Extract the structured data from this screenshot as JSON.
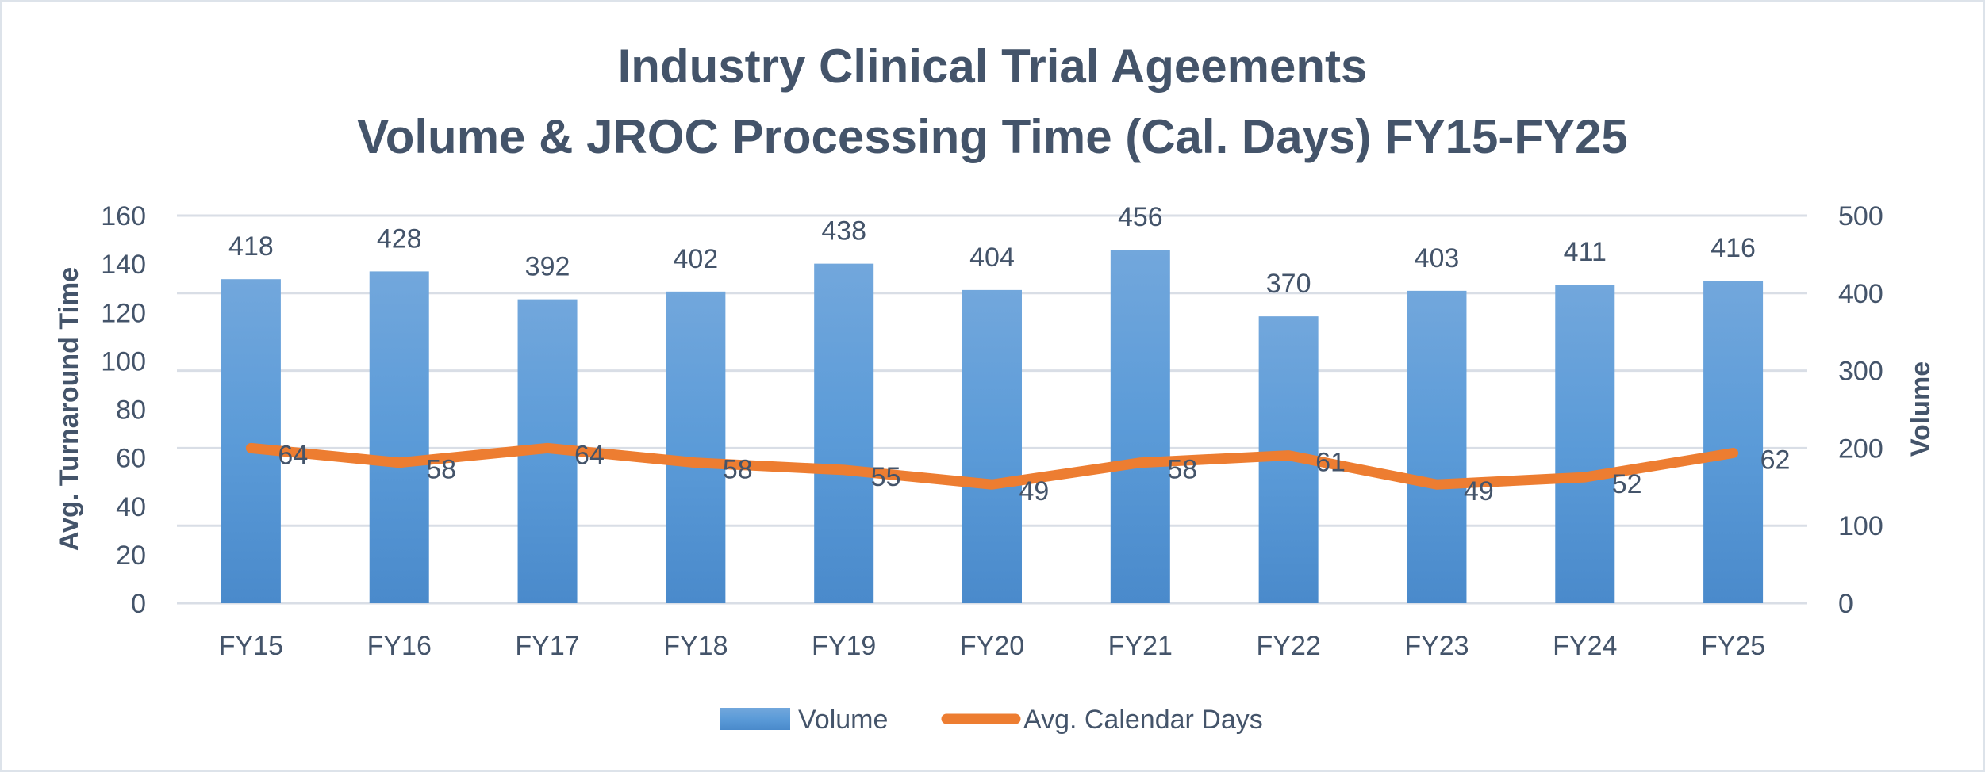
{
  "chart_data": {
    "type": "bar",
    "title": "Industry Clinical Trial Ageements",
    "subtitle": "Volume & JROC Processing Time (Cal. Days) FY15-FY25",
    "categories": [
      "FY15",
      "FY16",
      "FY17",
      "FY18",
      "FY19",
      "FY20",
      "FY21",
      "FY22",
      "FY23",
      "FY24",
      "FY25"
    ],
    "series": [
      {
        "name": "Volume",
        "type": "bar",
        "axis": "right",
        "color": "#5b9bd5",
        "values": [
          418,
          428,
          392,
          402,
          438,
          404,
          456,
          370,
          403,
          411,
          416
        ]
      },
      {
        "name": "Avg. Calendar Days",
        "type": "line",
        "axis": "left",
        "color": "#ed7d31",
        "values": [
          64,
          58,
          64,
          58,
          55,
          49,
          58,
          61,
          49,
          52,
          62
        ]
      }
    ],
    "ylabel": "Avg. Turnaround Time",
    "ylim": [
      0,
      160
    ],
    "yticks": [
      "0",
      "20",
      "40",
      "60",
      "80",
      "100",
      "120",
      "140",
      "160"
    ],
    "y2label": "Volume",
    "y2lim": [
      0,
      500
    ],
    "y2ticks": [
      "0",
      "100",
      "200",
      "300",
      "400",
      "500"
    ],
    "grid": true,
    "legend": {
      "position": "bottom",
      "entries": [
        "Volume",
        "Avg. Calendar Days"
      ]
    }
  }
}
